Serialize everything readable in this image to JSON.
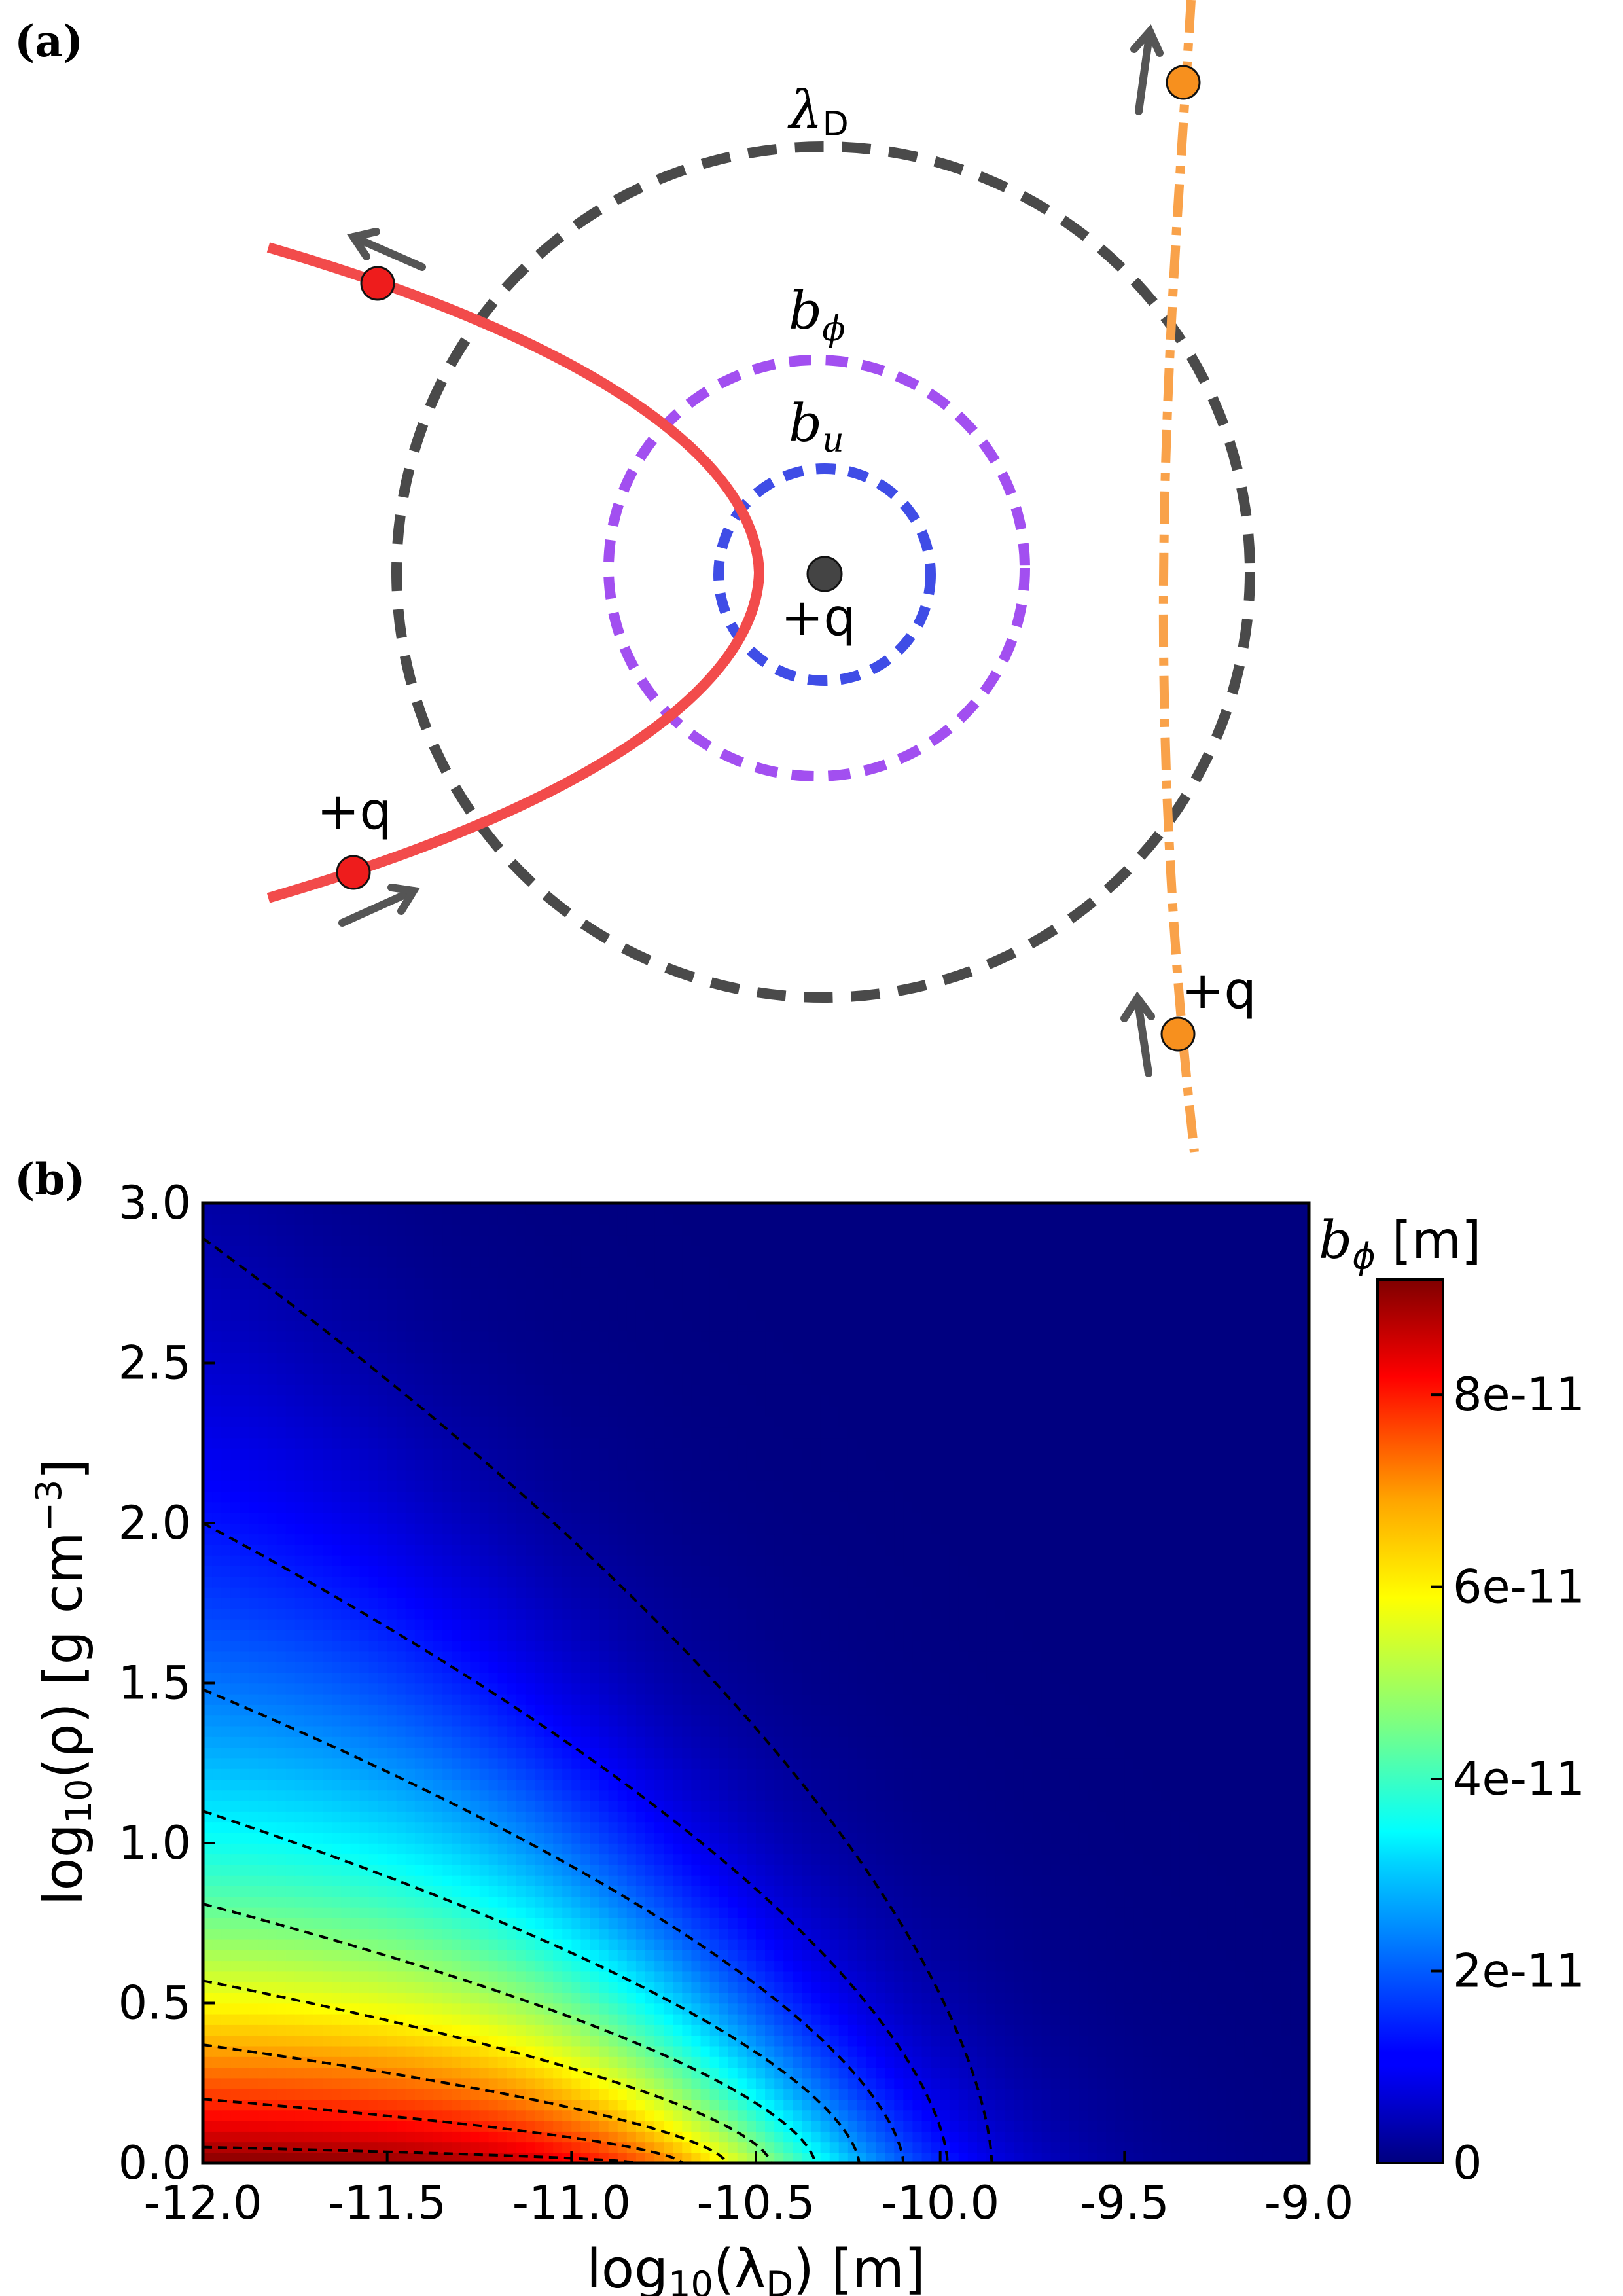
{
  "panel_a": {
    "label": "(a)",
    "circle_labels": {
      "debye": {
        "sym": "λ",
        "sub": "D"
      },
      "b_phi": {
        "sym": "b",
        "sub": "ϕ"
      },
      "b_u": {
        "sym": "b",
        "sub": "u"
      }
    },
    "charge_labels": [
      "+q",
      "+q",
      "+q"
    ],
    "colors": {
      "debye_circle": "#4a4a4a",
      "b_phi_circle": "#a24ff0",
      "b_u_circle": "#3f4de6",
      "red_trajectory": "#f24b4b",
      "orange_trajectory": "#f9a24a",
      "red_particle": "#ee1c1c",
      "orange_particle": "#f7901e",
      "central_charge": "#444444",
      "arrow": "#555555"
    }
  },
  "panel_b": {
    "label": "(b)",
    "chart_data": {
      "type": "heatmap",
      "xlabel": {
        "pre": "log",
        "sub1": "10",
        "mid": "(λ",
        "sub2": "D",
        "post": ") [m]"
      },
      "ylabel": {
        "pre": "log",
        "sub1": "10",
        "mid": "(ρ) [g cm",
        "sup": "−3",
        "post": "]"
      },
      "xlim": [
        -12.0,
        -9.0
      ],
      "ylim": [
        0.0,
        3.0
      ],
      "xticks": [
        "-12.0",
        "-11.5",
        "-11.0",
        "-10.5",
        "-10.0",
        "-9.5",
        "-9.0"
      ],
      "yticks": [
        "0.0",
        "0.5",
        "1.0",
        "1.5",
        "2.0",
        "2.5",
        "3.0"
      ],
      "xtick_values": [
        -12.0,
        -11.5,
        -11.0,
        -10.5,
        -10.0,
        -9.5,
        -9.0
      ],
      "ytick_values": [
        0.0,
        0.5,
        1.0,
        1.5,
        2.0,
        2.5,
        3.0
      ],
      "colorbar": {
        "label": {
          "sym": "b",
          "sub": "ϕ",
          "post": " [m]"
        },
        "min": 0,
        "max": 9.2e-11,
        "ticks": [
          "0",
          "2e-11",
          "4e-11",
          "6e-11",
          "8e-11"
        ],
        "tick_values": [
          0,
          2e-11,
          4e-11,
          6e-11,
          8e-11
        ],
        "colormap": "jet"
      },
      "contours": [
        {
          "level": 8.5e-12,
          "start_y": 2.89
        },
        {
          "level": 1.7e-11,
          "start_y": 2.0
        },
        {
          "level": 2.5e-11,
          "start_y": 1.48
        },
        {
          "level": 3.3e-11,
          "start_y": 1.1
        },
        {
          "level": 4.2e-11,
          "start_y": 0.81
        },
        {
          "level": 5.1e-11,
          "start_y": 0.57
        },
        {
          "level": 6e-11,
          "start_y": 0.37
        },
        {
          "level": 7e-11,
          "start_y": 0.2
        },
        {
          "level": 8e-11,
          "start_y": 0.05
        }
      ],
      "grid": false,
      "legend": "none"
    }
  }
}
